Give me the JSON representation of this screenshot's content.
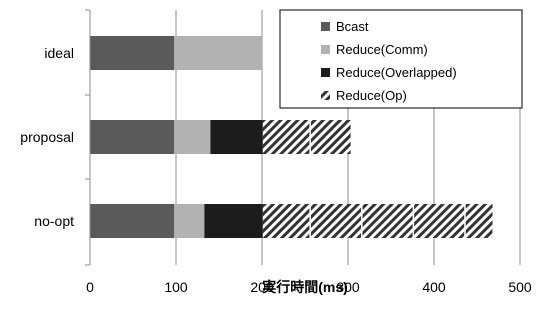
{
  "chart_data": {
    "type": "bar",
    "orientation": "horizontal",
    "stacked": true,
    "categories": [
      "ideal",
      "proposal",
      "no-opt"
    ],
    "series": [
      {
        "name": "Bcast",
        "values": [
          98,
          98,
          98
        ],
        "color": "#5a5a5a",
        "pattern": "solid"
      },
      {
        "name": "Reduce(Comm)",
        "values": [
          102,
          42,
          35
        ],
        "color": "#b2b2b2",
        "pattern": "solid"
      },
      {
        "name": "Reduce(Overlapped)",
        "values": [
          0,
          61,
          68
        ],
        "color": "#1c1c1c",
        "pattern": "solid"
      },
      {
        "name": "Reduce(Op)",
        "values": [
          0,
          102,
          267
        ],
        "color": "#3a3a3a",
        "pattern": "diagonal-stripes"
      }
    ],
    "segment_dividers": {
      "proposal": [
        256
      ],
      "no-opt": [
        256,
        316,
        376,
        436
      ]
    },
    "xlabel": "実行時間(ms)",
    "xlim": [
      0,
      500
    ],
    "xticks": [
      "0",
      "100",
      "200",
      "300",
      "400",
      "500"
    ],
    "grid": "vertical",
    "legend_position": "top-right"
  }
}
